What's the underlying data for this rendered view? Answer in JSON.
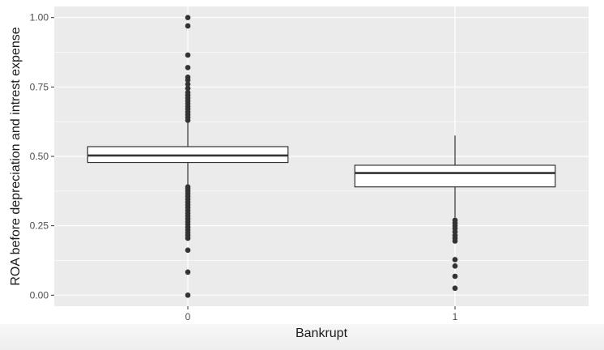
{
  "chart_data": {
    "type": "box",
    "title": "",
    "xlabel": "Bankrupt",
    "ylabel": "ROA before depreciation and intrest expense",
    "ylim": [
      -0.04,
      1.04
    ],
    "yticks": [
      "0.00",
      "0.25",
      "0.50",
      "0.75",
      "1.00"
    ],
    "categories": [
      "0",
      "1"
    ],
    "grid": true,
    "background": "#ebebeb",
    "box_fill": "#ffffff",
    "point_color": "#333333",
    "boxes": [
      {
        "category": "0",
        "whisker_low": 0.395,
        "q1": 0.478,
        "median": 0.503,
        "q3": 0.535,
        "whisker_high": 0.622,
        "outliers": [
          0.0,
          0.083,
          0.162,
          0.205,
          0.215,
          0.225,
          0.235,
          0.245,
          0.255,
          0.265,
          0.275,
          0.285,
          0.295,
          0.305,
          0.315,
          0.325,
          0.335,
          0.345,
          0.355,
          0.365,
          0.375,
          0.383,
          0.39,
          0.63,
          0.64,
          0.65,
          0.66,
          0.67,
          0.68,
          0.69,
          0.7,
          0.71,
          0.72,
          0.73,
          0.745,
          0.76,
          0.775,
          0.785,
          0.82,
          0.865,
          0.97,
          1.0
        ]
      },
      {
        "category": "1",
        "whisker_low": 0.28,
        "q1": 0.39,
        "median": 0.44,
        "q3": 0.468,
        "whisker_high": 0.575,
        "outliers": [
          0.025,
          0.068,
          0.105,
          0.128,
          0.195,
          0.205,
          0.215,
          0.228,
          0.24,
          0.25,
          0.26,
          0.27
        ]
      }
    ]
  }
}
